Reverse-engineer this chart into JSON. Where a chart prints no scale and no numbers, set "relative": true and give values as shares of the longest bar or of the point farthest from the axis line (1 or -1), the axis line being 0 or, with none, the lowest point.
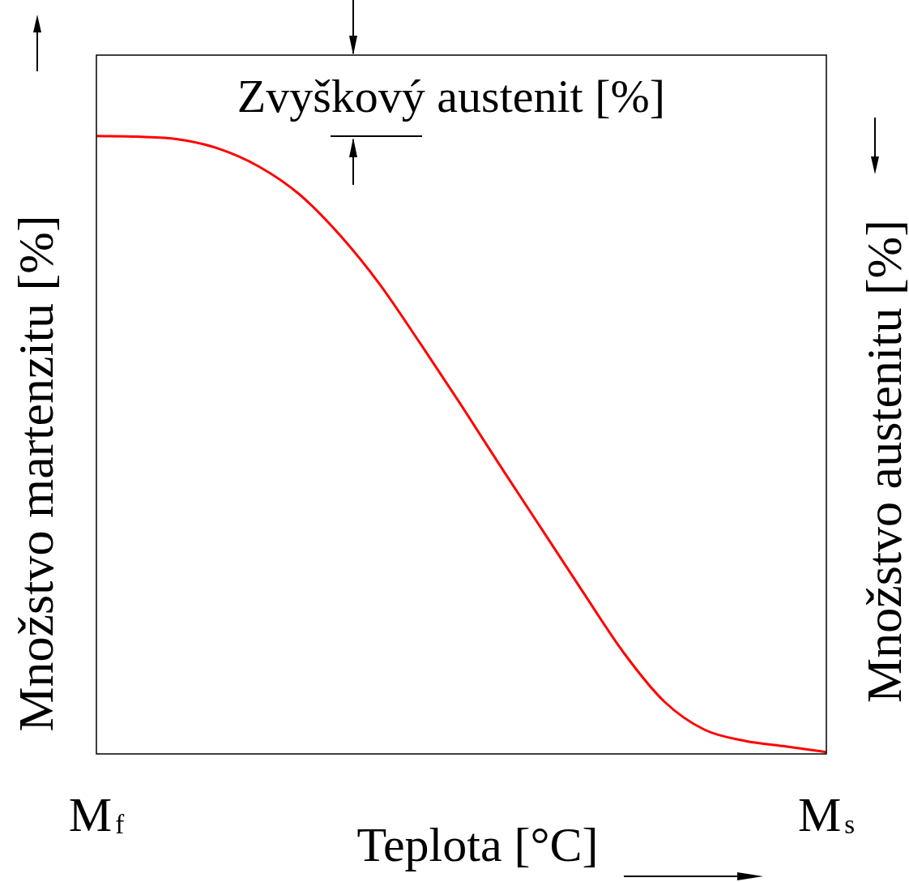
{
  "chart_data": {
    "type": "line",
    "relative": true,
    "categories": [
      "M$_{f}$",
      null,
      null,
      null,
      null,
      null,
      null,
      null,
      null,
      null,
      null,
      null,
      null,
      null,
      null,
      null,
      null,
      null,
      "M$_{s}$"
    ],
    "series": [
      {
        "color": "#ff0000",
        "values": [
          1,
          0.999,
          0.995,
          0.98,
          0.951,
          0.906,
          0.84,
          0.759,
          0.663,
          0.564,
          0.462,
          0.362,
          0.262,
          0.164,
          0.085,
          0.039,
          0.021,
          0.012,
          0.003
        ]
      }
    ],
    "xlabel": "Teplota [°C]",
    "ylabel": "Množstvo martenzitu [%]",
    "y2label": "Množstvo austenitu [%]",
    "annotations": [
      "Zvyškový austenit [%]"
    ],
    "legend": false,
    "marker": "none",
    "line_style": "solid"
  }
}
